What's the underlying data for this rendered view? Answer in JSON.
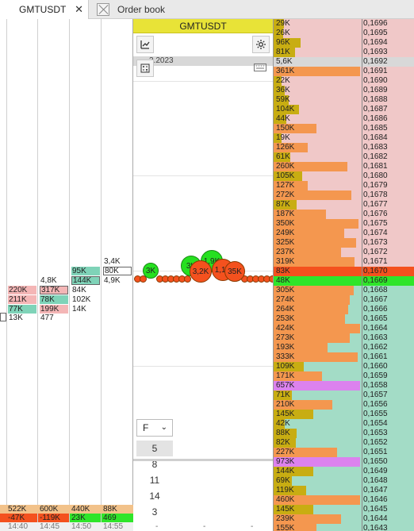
{
  "tabs": [
    {
      "label": "GMTUSDT",
      "close": "✕"
    },
    {
      "label": "Order book"
    }
  ],
  "chart": {
    "symbol": "GMTUSDT",
    "date_fragment": "3.2023",
    "frame_select": {
      "value": "F",
      "options": [
        "5",
        "8",
        "11",
        "14",
        "3"
      ],
      "selected": "5"
    }
  },
  "left_cells": [
    {
      "text": "3,4K",
      "style": "plain",
      "col": 3,
      "row": 0
    },
    {
      "text": "95K",
      "style": "teal",
      "col": 2,
      "row": 1
    },
    {
      "text": "80K",
      "style": "out",
      "col": 3,
      "row": 1
    },
    {
      "text": "4,8K",
      "style": "plain",
      "col": 1,
      "row": 2
    },
    {
      "text": "144K",
      "style": "teal-out",
      "col": 2,
      "row": 2
    },
    {
      "text": "4,9K",
      "style": "plain",
      "col": 3,
      "row": 2
    },
    {
      "text": "220K",
      "style": "pink",
      "col": 0,
      "row": 3
    },
    {
      "text": "317K",
      "style": "pink-out",
      "col": 1,
      "row": 3
    },
    {
      "text": "84K",
      "style": "plain",
      "col": 2,
      "row": 3
    },
    {
      "text": "211K",
      "style": "pink",
      "col": 0,
      "row": 4
    },
    {
      "text": "78K",
      "style": "teal",
      "col": 1,
      "row": 4
    },
    {
      "text": "102K",
      "style": "plain",
      "col": 2,
      "row": 4
    },
    {
      "text": "77K",
      "style": "teal",
      "col": 0,
      "row": 5
    },
    {
      "text": "199K",
      "style": "pink",
      "col": 1,
      "row": 5
    },
    {
      "text": "14K",
      "style": "plain",
      "col": 2,
      "row": 5
    },
    {
      "text": "13K",
      "style": "plain",
      "col": 0,
      "row": 6
    },
    {
      "text": "477",
      "style": "plain",
      "col": 1,
      "row": 6
    }
  ],
  "totals": [
    "522K",
    "600K",
    "440K",
    "88K"
  ],
  "deltas": [
    {
      "text": "-47K",
      "color": "#f4511e"
    },
    {
      "text": "-119K",
      "color": "#f4511e"
    },
    {
      "text": "23K",
      "color": "#2fe52a"
    },
    {
      "text": "469",
      "color": "#2fe52a"
    }
  ],
  "times": [
    "14:40",
    "14:45",
    "14:50",
    "14:55"
  ],
  "bubbles": [
    {
      "label": "3K",
      "color": "green"
    },
    {
      "label": "3K",
      "color": "green"
    },
    {
      "label": "1,9K",
      "color": "green"
    },
    {
      "label": "3,2K",
      "color": "red"
    },
    {
      "label": "1,1K",
      "color": "red"
    },
    {
      "label": "35K",
      "color": "red"
    }
  ],
  "chart_dashes": [
    "-",
    "-",
    "-"
  ],
  "orderbook": [
    {
      "vol": "29K",
      "price": "0,1696",
      "side": "ask",
      "frac": 0.13
    },
    {
      "vol": "26K",
      "price": "0,1695",
      "side": "ask",
      "frac": 0.12
    },
    {
      "vol": "96K",
      "price": "0,1694",
      "side": "ask",
      "frac": 0.32
    },
    {
      "vol": "81K",
      "price": "0,1693",
      "side": "ask",
      "frac": 0.25
    },
    {
      "vol": "5,6K",
      "price": "0,1692",
      "side": "grey",
      "frac": 0.04
    },
    {
      "vol": "361K",
      "price": "0,1691",
      "side": "ask",
      "frac": 1.0
    },
    {
      "vol": "22K",
      "price": "0,1690",
      "side": "ask",
      "frac": 0.1
    },
    {
      "vol": "36K",
      "price": "0,1689",
      "side": "ask",
      "frac": 0.14
    },
    {
      "vol": "59K",
      "price": "0,1688",
      "side": "ask",
      "frac": 0.18
    },
    {
      "vol": "104K",
      "price": "0,1687",
      "side": "ask",
      "frac": 0.3
    },
    {
      "vol": "44K",
      "price": "0,1686",
      "side": "ask",
      "frac": 0.15
    },
    {
      "vol": "150K",
      "price": "0,1685",
      "side": "ask",
      "frac": 0.5
    },
    {
      "vol": "19K",
      "price": "0,1684",
      "side": "ask",
      "frac": 0.1
    },
    {
      "vol": "126K",
      "price": "0,1683",
      "side": "ask",
      "frac": 0.4
    },
    {
      "vol": "61K",
      "price": "0,1682",
      "side": "ask",
      "frac": 0.2
    },
    {
      "vol": "260K",
      "price": "0,1681",
      "side": "ask",
      "frac": 0.85
    },
    {
      "vol": "105K",
      "price": "0,1680",
      "side": "ask",
      "frac": 0.34
    },
    {
      "vol": "127K",
      "price": "0,1679",
      "side": "ask",
      "frac": 0.4
    },
    {
      "vol": "272K",
      "price": "0,1678",
      "side": "ask",
      "frac": 0.9
    },
    {
      "vol": "87K",
      "price": "0,1677",
      "side": "ask",
      "frac": 0.27
    },
    {
      "vol": "187K",
      "price": "0,1676",
      "side": "ask",
      "frac": 0.61
    },
    {
      "vol": "350K",
      "price": "0,1675",
      "side": "ask",
      "frac": 0.98
    },
    {
      "vol": "249K",
      "price": "0,1674",
      "side": "ask",
      "frac": 0.82
    },
    {
      "vol": "325K",
      "price": "0,1673",
      "side": "ask",
      "frac": 0.95
    },
    {
      "vol": "237K",
      "price": "0,1672",
      "side": "ask",
      "frac": 0.78
    },
    {
      "vol": "319K",
      "price": "0,1671",
      "side": "ask",
      "frac": 0.94
    },
    {
      "vol": "83K",
      "price": "0,1670",
      "side": "best-ask",
      "frac": 1.0
    },
    {
      "vol": "48K",
      "price": "0,1669",
      "side": "best-bid",
      "frac": 1.0
    },
    {
      "vol": "305K",
      "price": "0,1668",
      "side": "bid",
      "frac": 0.93
    },
    {
      "vol": "274K",
      "price": "0,1667",
      "side": "bid",
      "frac": 0.88
    },
    {
      "vol": "264K",
      "price": "0,1666",
      "side": "bid",
      "frac": 0.86
    },
    {
      "vol": "253K",
      "price": "0,1665",
      "side": "bid",
      "frac": 0.83
    },
    {
      "vol": "424K",
      "price": "0,1664",
      "side": "bid",
      "frac": 1.0
    },
    {
      "vol": "273K",
      "price": "0,1663",
      "side": "bid",
      "frac": 0.88
    },
    {
      "vol": "193K",
      "price": "0,1662",
      "side": "bid",
      "frac": 0.63
    },
    {
      "vol": "333K",
      "price": "0,1661",
      "side": "bid",
      "frac": 0.97
    },
    {
      "vol": "109K",
      "price": "0,1660",
      "side": "bid-small",
      "frac": 0.35
    },
    {
      "vol": "171K",
      "price": "0,1659",
      "side": "bid",
      "frac": 0.56
    },
    {
      "vol": "657K",
      "price": "0,1658",
      "side": "big",
      "frac": 1.0
    },
    {
      "vol": "71K",
      "price": "0,1657",
      "side": "bid-small",
      "frac": 0.22
    },
    {
      "vol": "210K",
      "price": "0,1656",
      "side": "bid",
      "frac": 0.68
    },
    {
      "vol": "145K",
      "price": "0,1655",
      "side": "bid-small",
      "frac": 0.46
    },
    {
      "vol": "42K",
      "price": "0,1654",
      "side": "bid-small",
      "frac": 0.14
    },
    {
      "vol": "88K",
      "price": "0,1653",
      "side": "bid-small",
      "frac": 0.27
    },
    {
      "vol": "82K",
      "price": "0,1652",
      "side": "bid-small",
      "frac": 0.26
    },
    {
      "vol": "227K",
      "price": "0,1651",
      "side": "bid",
      "frac": 0.74
    },
    {
      "vol": "973K",
      "price": "0,1650",
      "side": "big",
      "frac": 1.0
    },
    {
      "vol": "144K",
      "price": "0,1649",
      "side": "bid-small",
      "frac": 0.46
    },
    {
      "vol": "69K",
      "price": "0,1648",
      "side": "bid-small",
      "frac": 0.22
    },
    {
      "vol": "119K",
      "price": "0,1647",
      "side": "bid-small",
      "frac": 0.38
    },
    {
      "vol": "460K",
      "price": "0,1646",
      "side": "bid",
      "frac": 1.0
    },
    {
      "vol": "145K",
      "price": "0,1645",
      "side": "bid-small",
      "frac": 0.46
    },
    {
      "vol": "239K",
      "price": "0,1644",
      "side": "bid",
      "frac": 0.78
    },
    {
      "vol": "155K",
      "price": "0,1643",
      "side": "bid",
      "frac": 0.5
    }
  ],
  "colors": {
    "ask_bg": "#f0c8c8",
    "bid_bg": "#a3dcc6",
    "ask_bar": "#f4974f",
    "bid_bar": "#f4974f",
    "small_bar": "#c8ad12",
    "best_ask": "#f4511e",
    "best_bid": "#2fe52a",
    "big": "#dc82ee",
    "grey_row": "#d8d8d8"
  }
}
